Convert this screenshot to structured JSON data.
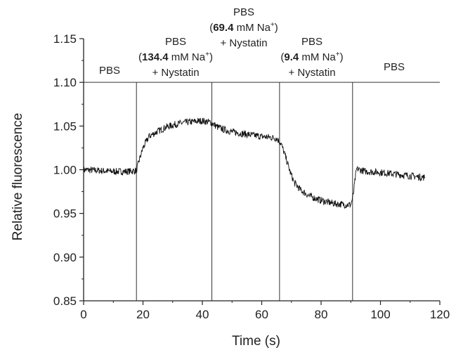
{
  "chart_data": {
    "type": "line",
    "xlabel": "Time (s)",
    "ylabel": "Relative fluorescence",
    "xlim": [
      0,
      120
    ],
    "ylim": [
      0.85,
      1.15
    ],
    "xticks": [
      "0",
      "20",
      "40",
      "60",
      "80",
      "100",
      "120"
    ],
    "yticks": [
      "0.85",
      "0.90",
      "0.95",
      "1.00",
      "1.05",
      "1.10",
      "1.15"
    ],
    "grid": false,
    "legend": "none",
    "reference_line": {
      "y": 1.1
    },
    "event_lines_x": [
      17.8,
      43.2,
      66.0,
      90.6
    ],
    "annotations": [
      {
        "line1": "PBS"
      },
      {
        "line1": "PBS",
        "bold": "134.4",
        "unit": "mM Na",
        "sup": "+",
        "line3": "+ Nystatin"
      },
      {
        "line1": "PBS",
        "bold": "69.4",
        "unit": "mM Na",
        "sup": "+",
        "line3": "+ Nystatin"
      },
      {
        "line1": "PBS",
        "bold": "9.4",
        "unit": "mM Na",
        "sup": "+",
        "line3": "+ Nystatin"
      },
      {
        "line1": "PBS"
      }
    ],
    "series": [
      {
        "color": "#111111",
        "noise": 0.004,
        "x": [
          0,
          5,
          10,
          15,
          17.8,
          18.5,
          20,
          22,
          25,
          28,
          31,
          34,
          37,
          40,
          43,
          45,
          48,
          52,
          56,
          60,
          63,
          65,
          66.5,
          68,
          69.5,
          71,
          73,
          76,
          79,
          82,
          85,
          88,
          90,
          90.8,
          91.5,
          92,
          95,
          100,
          105,
          110,
          115
        ],
        "y": [
          1.0,
          0.999,
          0.998,
          0.998,
          0.999,
          1.008,
          1.025,
          1.038,
          1.044,
          1.049,
          1.052,
          1.054,
          1.055,
          1.056,
          1.054,
          1.049,
          1.045,
          1.042,
          1.04,
          1.038,
          1.037,
          1.036,
          1.03,
          1.015,
          0.998,
          0.985,
          0.977,
          0.97,
          0.966,
          0.963,
          0.961,
          0.96,
          0.96,
          0.97,
          0.99,
          1.001,
          0.998,
          0.997,
          0.995,
          0.993,
          0.991
        ]
      }
    ]
  }
}
